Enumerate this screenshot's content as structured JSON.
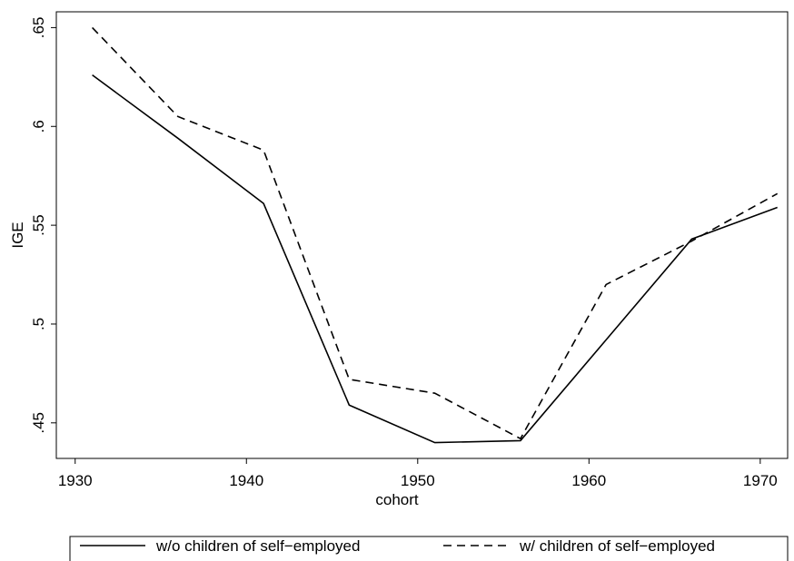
{
  "chart_data": {
    "type": "line",
    "x_label": "cohort",
    "y_label": "IGE",
    "x": [
      1931,
      1936,
      1941,
      1946,
      1951,
      1956,
      1961,
      1966,
      1971
    ],
    "series": [
      {
        "name": "w/o children of self−employed",
        "color": "#000000",
        "dash": "solid",
        "values": [
          0.626,
          0.594,
          0.561,
          0.459,
          0.44,
          0.441,
          0.492,
          0.543,
          0.559
        ]
      },
      {
        "name": "w/ children of self−employed",
        "color": "#000000",
        "dash": "dashed",
        "values": [
          0.65,
          0.605,
          0.588,
          0.472,
          0.465,
          0.442,
          0.52,
          0.542,
          0.566
        ]
      }
    ],
    "xlim": [
      1928.9,
      1971.6
    ],
    "ylim": [
      0.432,
      0.658
    ],
    "xticks": [
      1930,
      1940,
      1950,
      1960,
      1970
    ],
    "yticks": [
      {
        "value": 0.45,
        "label": ".45"
      },
      {
        "value": 0.5,
        "label": ".5"
      },
      {
        "value": 0.55,
        "label": ".55"
      },
      {
        "value": 0.6,
        "label": ".6"
      },
      {
        "value": 0.65,
        "label": ".65"
      }
    ],
    "grid": false,
    "legend": "bottom"
  }
}
